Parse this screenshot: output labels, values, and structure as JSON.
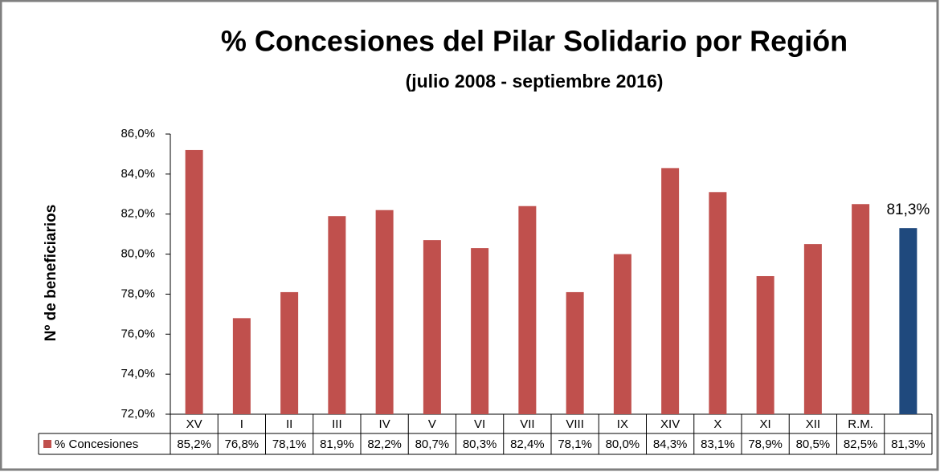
{
  "chart_data": {
    "type": "bar",
    "title": "% Concesiones del Pilar Solidario por Región",
    "subtitle": "(julio 2008 - septiembre 2016)",
    "y_label": "Nº de beneficiarios",
    "categories": [
      "XV",
      "I",
      "II",
      "III",
      "IV",
      "V",
      "VI",
      "VII",
      "VIII",
      "IX",
      "XIV",
      "X",
      "XI",
      "XII",
      "R.M.",
      null
    ],
    "series": [
      {
        "name": "% Concesiones",
        "color": "#c0504d",
        "colors": [
          "#c0504d",
          "#c0504d",
          "#c0504d",
          "#c0504d",
          "#c0504d",
          "#c0504d",
          "#c0504d",
          "#c0504d",
          "#c0504d",
          "#c0504d",
          "#c0504d",
          "#c0504d",
          "#c0504d",
          "#c0504d",
          "#c0504d",
          "#1f497d"
        ],
        "values": [
          85.2,
          76.8,
          78.1,
          81.9,
          82.2,
          80.7,
          80.3,
          82.4,
          78.1,
          80.0,
          84.3,
          83.1,
          78.9,
          80.5,
          82.5,
          81.3
        ],
        "value_labels": [
          "85,2%",
          "76,8%",
          "78,1%",
          "81,9%",
          "82,2%",
          "80,7%",
          "80,3%",
          "82,4%",
          "78,1%",
          "80,0%",
          "84,3%",
          "83,1%",
          "78,9%",
          "80,5%",
          "82,5%",
          "81,3%"
        ]
      }
    ],
    "ylim": [
      72,
      86
    ],
    "yticks": [
      {
        "value": 72,
        "label": "72,0%"
      },
      {
        "value": 74,
        "label": "74,0%"
      },
      {
        "value": 76,
        "label": "76,0%"
      },
      {
        "value": 78,
        "label": "78,0%"
      },
      {
        "value": 80,
        "label": "80,0%"
      },
      {
        "value": 82,
        "label": "82,0%"
      },
      {
        "value": 84,
        "label": "84,0%"
      },
      {
        "value": 86,
        "label": "86,0%"
      }
    ],
    "grid": false
  }
}
